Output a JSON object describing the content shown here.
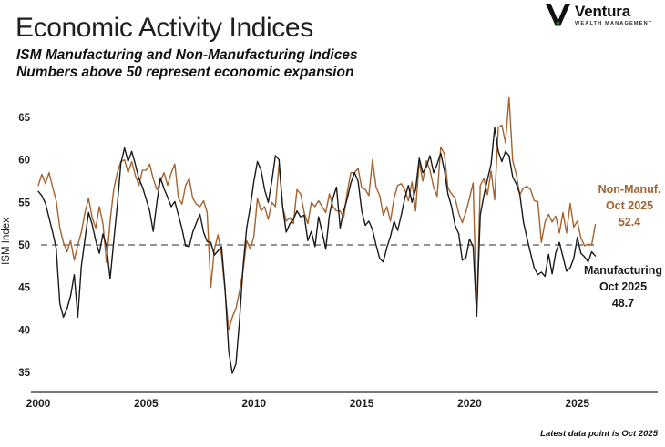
{
  "header": {
    "title": "Economic Activity Indices",
    "subtitle_line1": "ISM Manufacturing and Non-Manufacturing Indices",
    "subtitle_line2": "Numbers above 50 represent economic expansion",
    "logo": {
      "name": "Ventura",
      "tagline": "WEALTH MANAGEMENT",
      "mark_color": "#111111",
      "accent_green": "#2e8b3a"
    }
  },
  "footnote": "Latest data point is Oct 2025",
  "chart_data": {
    "type": "line",
    "title": "Economic Activity Indices",
    "xlabel": "",
    "ylabel": "ISM Index",
    "ylim": [
      33,
      68
    ],
    "xlim": [
      2000,
      2028.7
    ],
    "y_ticks": [
      35,
      40,
      45,
      50,
      55,
      60,
      65
    ],
    "x_ticks": [
      2000,
      2005,
      2010,
      2015,
      2020,
      2025
    ],
    "grid": false,
    "reference_line": 50,
    "reference_line_style": "dashed",
    "x_start": 2000.0,
    "x_step_years": 0.16667,
    "series": [
      {
        "name": "Non-Manufacturing",
        "color": "#a5622d",
        "annotation": [
          "Non-Manuf.",
          "Oct 2025",
          "52.4"
        ],
        "latest_label": "Oct 2025",
        "latest_value": 52.4,
        "values": [
          57.0,
          58.3,
          57.2,
          58.5,
          56.8,
          55.2,
          52.0,
          50.3,
          49.2,
          50.5,
          48.2,
          50.0,
          51.5,
          53.8,
          55.5,
          53.2,
          52.0,
          54.5,
          52.5,
          47.9,
          52.8,
          56.5,
          58.5,
          59.8,
          60.0,
          58.5,
          59.8,
          58.2,
          57.0,
          58.8,
          58.8,
          59.5,
          57.8,
          56.5,
          57.5,
          58.5,
          57.0,
          58.5,
          59.5,
          55.5,
          54.8,
          57.0,
          57.8,
          55.5,
          54.8,
          54.5,
          55.2,
          53.8,
          45.0,
          49.5,
          51.2,
          48.8,
          44.5,
          40.0,
          41.5,
          42.5,
          44.5,
          47.0,
          50.5,
          49.5,
          51.0,
          55.5,
          54.0,
          54.5,
          53.0,
          55.0,
          54.5,
          59.5,
          54.5,
          52.8,
          53.2,
          52.5,
          56.5,
          56.0,
          53.8,
          52.5,
          55.0,
          54.5,
          55.2,
          54.5,
          53.8,
          56.0,
          54.5,
          54.0,
          54.0,
          53.2,
          56.3,
          58.5,
          58.5,
          59.0,
          56.7,
          56.5,
          55.8,
          60.0,
          56.8,
          55.8,
          53.5,
          54.5,
          52.8,
          55.5,
          57.0,
          57.2,
          56.5,
          55.2,
          57.4,
          54.0,
          59.8,
          57.5,
          59.9,
          58.8,
          56.8,
          55.7,
          61.5,
          60.7,
          56.7,
          56.0,
          55.5,
          53.7,
          52.6,
          53.9,
          55.5,
          57.3,
          41.8,
          57.0,
          57.8,
          55.9,
          58.7,
          55.3,
          63.8,
          64.1,
          62.0,
          67.4,
          59.9,
          58.3,
          55.9,
          56.7,
          56.9,
          56.5,
          55.2,
          55.1,
          50.3,
          52.7,
          53.6,
          52.7,
          53.4,
          51.4,
          53.8,
          51.4,
          54.9,
          52.1,
          52.8,
          50.8,
          49.9,
          50.1,
          50.0,
          52.4
        ]
      },
      {
        "name": "Manufacturing",
        "color": "#1a1a1a",
        "annotation": [
          "Manufacturing",
          "Oct 2025",
          "48.7"
        ],
        "latest_label": "Oct 2025",
        "latest_value": 48.7,
        "values": [
          56.3,
          55.8,
          54.9,
          53.2,
          51.5,
          49.6,
          43.1,
          41.5,
          42.5,
          44.0,
          46.5,
          41.5,
          47.5,
          50.7,
          53.8,
          52.4,
          50.5,
          49.0,
          51.3,
          49.8,
          46.0,
          50.4,
          54.7,
          59.6,
          61.4,
          59.8,
          61.0,
          59.5,
          57.8,
          56.8,
          55.4,
          54.0,
          51.6,
          55.0,
          57.9,
          56.6,
          55.6,
          54.5,
          55.1,
          53.5,
          51.9,
          49.9,
          49.8,
          51.5,
          52.6,
          53.6,
          51.5,
          50.4,
          50.3,
          48.8,
          49.3,
          49.8,
          44.8,
          37.5,
          34.9,
          36.0,
          41.0,
          47.5,
          52.0,
          54.5,
          57.5,
          59.8,
          58.8,
          56.5,
          55.0,
          57.5,
          60.5,
          60.0,
          54.5,
          51.5,
          52.5,
          53.0,
          54.0,
          53.3,
          53.5,
          50.5,
          51.6,
          49.8,
          53.3,
          51.5,
          49.5,
          53.5,
          55.5,
          56.8,
          52.0,
          54.0,
          55.5,
          57.3,
          58.5,
          57.5,
          54.0,
          52.3,
          52.8,
          51.8,
          50.0,
          48.4,
          48.0,
          49.7,
          51.0,
          52.8,
          51.7,
          53.5,
          55.5,
          57.0,
          55.0,
          56.5,
          60.2,
          58.5,
          59.2,
          60.5,
          58.5,
          59.5,
          60.8,
          58.8,
          56.0,
          54.5,
          52.3,
          51.3,
          48.2,
          48.5,
          50.7,
          49.8,
          41.6,
          53.5,
          55.8,
          57.7,
          59.5,
          63.8,
          61.0,
          59.8,
          61.0,
          60.5,
          58.0,
          57.2,
          56.0,
          52.7,
          50.8,
          49.0,
          47.3,
          46.5,
          46.8,
          46.3,
          48.9,
          46.6,
          49.1,
          50.3,
          48.6,
          46.9,
          47.3,
          48.4,
          50.9,
          49.0,
          48.6,
          48.0,
          49.2,
          48.7
        ]
      }
    ]
  }
}
